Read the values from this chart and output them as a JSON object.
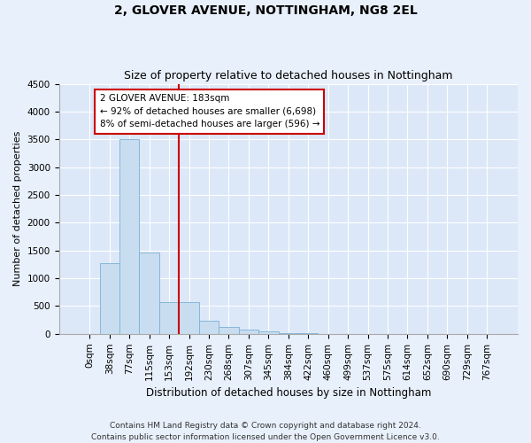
{
  "title": "2, GLOVER AVENUE, NOTTINGHAM, NG8 2EL",
  "subtitle": "Size of property relative to detached houses in Nottingham",
  "xlabel": "Distribution of detached houses by size in Nottingham",
  "ylabel": "Number of detached properties",
  "categories": [
    "0sqm",
    "38sqm",
    "77sqm",
    "115sqm",
    "153sqm",
    "192sqm",
    "230sqm",
    "268sqm",
    "307sqm",
    "345sqm",
    "384sqm",
    "422sqm",
    "460sqm",
    "499sqm",
    "537sqm",
    "575sqm",
    "614sqm",
    "652sqm",
    "690sqm",
    "729sqm",
    "767sqm"
  ],
  "values": [
    0,
    1280,
    3500,
    1470,
    570,
    570,
    240,
    120,
    80,
    40,
    20,
    10,
    5,
    3,
    2,
    1,
    0,
    0,
    0,
    0,
    0
  ],
  "bar_color": "#c9ddf0",
  "bar_edge_color": "#7bafd4",
  "vline_color": "#cc0000",
  "vline_x": 4.5,
  "annotation_text": "2 GLOVER AVENUE: 183sqm\n← 92% of detached houses are smaller (6,698)\n8% of semi-detached houses are larger (596) →",
  "annotation_box_facecolor": "#ffffff",
  "annotation_box_edgecolor": "#cc0000",
  "ylim": [
    0,
    4500
  ],
  "yticks": [
    0,
    500,
    1000,
    1500,
    2000,
    2500,
    3000,
    3500,
    4000,
    4500
  ],
  "footer": "Contains HM Land Registry data © Crown copyright and database right 2024.\nContains public sector information licensed under the Open Government Licence v3.0.",
  "bg_color": "#e8f0fb",
  "plot_bg_color": "#dce8f8",
  "title_fontsize": 10,
  "subtitle_fontsize": 9,
  "xlabel_fontsize": 8.5,
  "ylabel_fontsize": 8,
  "tick_fontsize": 7.5,
  "footer_fontsize": 6.5
}
